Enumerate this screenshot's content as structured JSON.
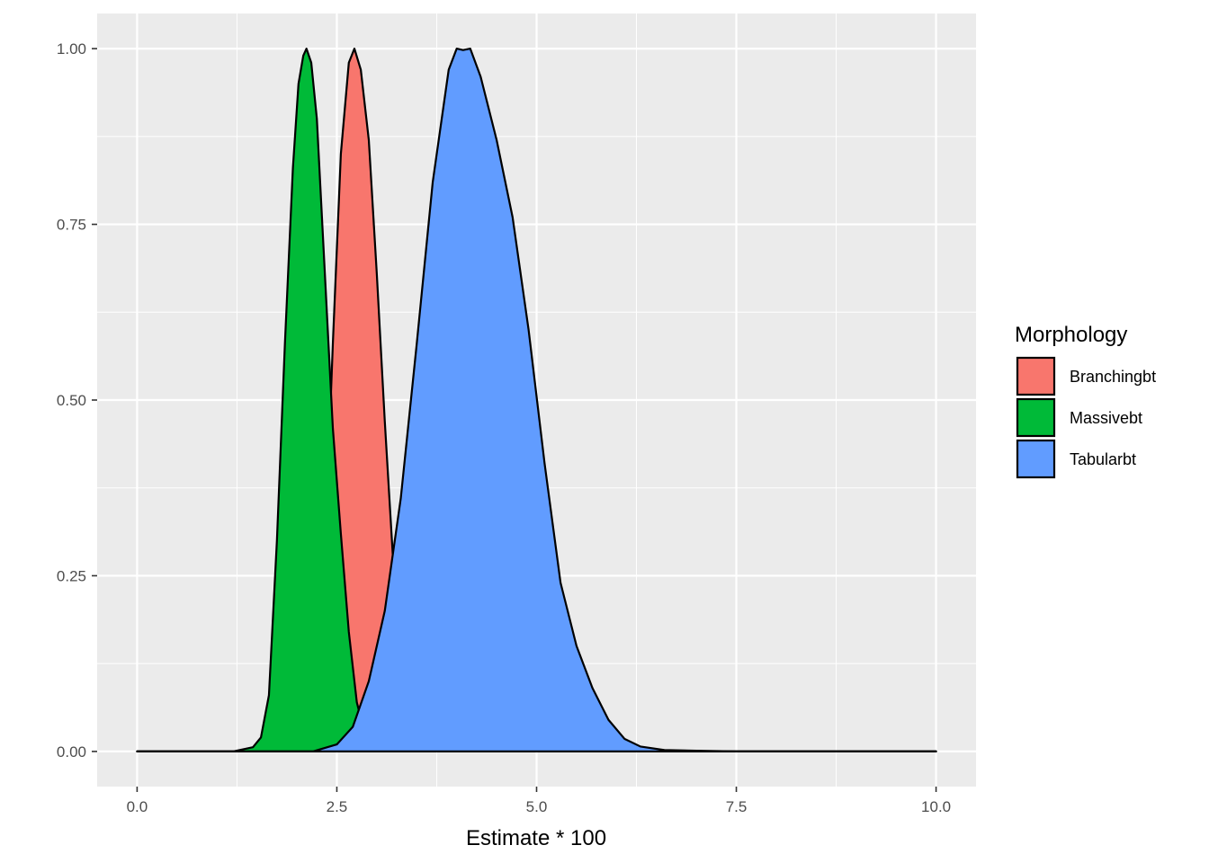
{
  "chart_data": {
    "type": "area",
    "xlabel": "Estimate * 100",
    "ylabel": "",
    "xlim": [
      -0.5,
      10.5
    ],
    "ylim": [
      -0.05,
      1.05
    ],
    "x_ticks": [
      0,
      2.5,
      5,
      7.5,
      10
    ],
    "x_tick_labels": [
      "0.0",
      "2.5",
      "5.0",
      "7.5",
      "10.0"
    ],
    "y_ticks": [
      0,
      0.25,
      0.5,
      0.75,
      1
    ],
    "y_tick_labels": [
      "0.00",
      "0.25",
      "0.50",
      "0.75",
      "1.00"
    ],
    "grid": true,
    "legend": {
      "title": "Morphology",
      "position": "right",
      "entries": [
        "Branchingbt",
        "Massivebt",
        "Tabularbt"
      ]
    },
    "series": [
      {
        "name": "Branchingbt",
        "color": "#F8766D",
        "x": [
          0,
          1.5,
          2.0,
          2.2,
          2.35,
          2.45,
          2.55,
          2.65,
          2.72,
          2.8,
          2.9,
          3.0,
          3.1,
          3.2,
          3.3,
          3.4,
          3.5,
          4.0,
          10
        ],
        "y": [
          0,
          0,
          0.004,
          0.05,
          0.28,
          0.58,
          0.85,
          0.98,
          1.0,
          0.97,
          0.87,
          0.68,
          0.47,
          0.28,
          0.12,
          0.04,
          0.01,
          0,
          0
        ]
      },
      {
        "name": "Massivebt",
        "color": "#00BA38",
        "x": [
          0,
          1.2,
          1.45,
          1.55,
          1.65,
          1.75,
          1.85,
          1.95,
          2.02,
          2.08,
          2.12,
          2.18,
          2.25,
          2.35,
          2.45,
          2.55,
          2.65,
          2.75,
          2.85,
          2.95,
          3.1,
          3.3,
          10
        ],
        "y": [
          0,
          0,
          0.006,
          0.02,
          0.08,
          0.3,
          0.58,
          0.83,
          0.95,
          0.99,
          1.0,
          0.98,
          0.9,
          0.68,
          0.46,
          0.31,
          0.17,
          0.07,
          0.025,
          0.008,
          0.002,
          0,
          0
        ]
      },
      {
        "name": "Tabularbt",
        "color": "#619CFF",
        "x": [
          0,
          2.2,
          2.5,
          2.7,
          2.9,
          3.1,
          3.3,
          3.5,
          3.7,
          3.9,
          4.0,
          4.08,
          4.17,
          4.3,
          4.5,
          4.7,
          4.9,
          5.1,
          5.3,
          5.5,
          5.7,
          5.9,
          6.1,
          6.3,
          6.6,
          7.0,
          7.5,
          10
        ],
        "y": [
          0,
          0,
          0.01,
          0.035,
          0.1,
          0.2,
          0.36,
          0.58,
          0.81,
          0.97,
          1.0,
          0.998,
          1.0,
          0.96,
          0.87,
          0.76,
          0.6,
          0.41,
          0.24,
          0.15,
          0.09,
          0.045,
          0.018,
          0.007,
          0.002,
          0.001,
          0,
          0
        ]
      }
    ]
  }
}
